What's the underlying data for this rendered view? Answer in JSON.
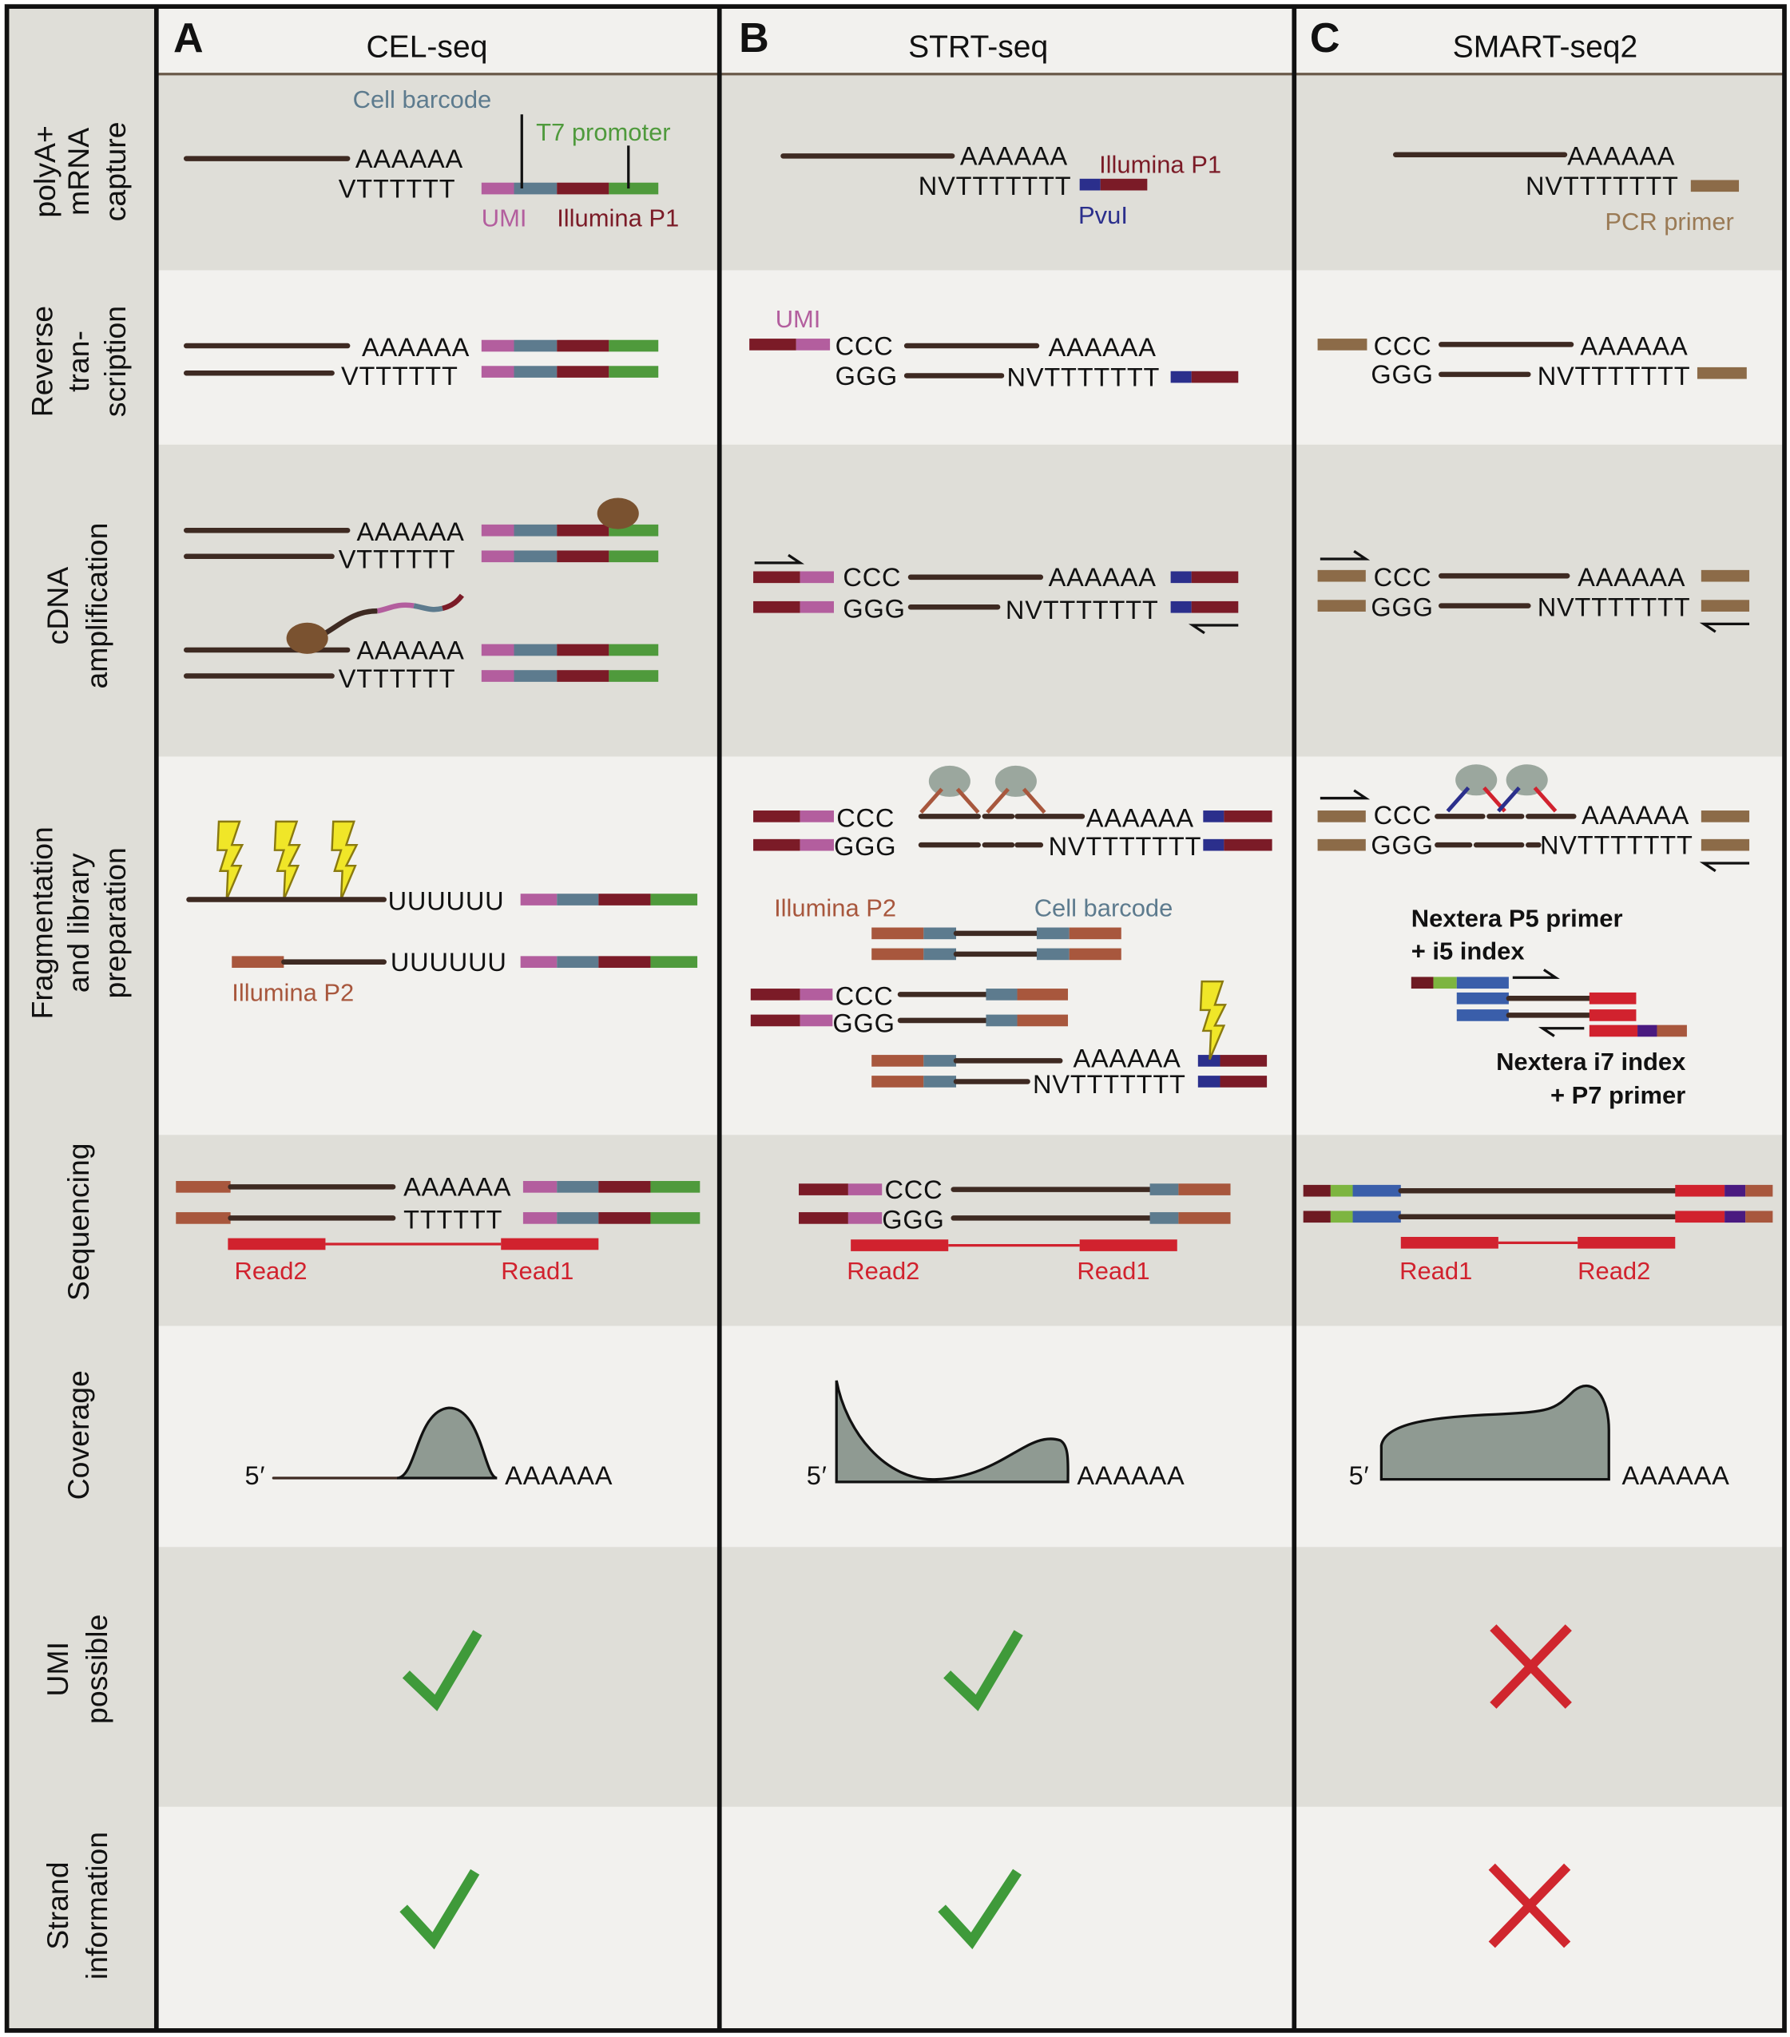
{
  "columns": [
    {
      "letter": "A",
      "name": "CEL-seq"
    },
    {
      "letter": "B",
      "name": "STRT-seq"
    },
    {
      "letter": "C",
      "name": "SMART-seq2"
    }
  ],
  "rows": [
    {
      "lines": [
        "polyA+",
        "mRNA",
        "capture"
      ]
    },
    {
      "lines": [
        "Reverse",
        "tran-",
        "scription"
      ]
    },
    {
      "lines": [
        "cDNA",
        "amplification"
      ]
    },
    {
      "lines": [
        "Fragmentation",
        "and library",
        "preparation"
      ]
    },
    {
      "lines": [
        "Sequencing"
      ]
    },
    {
      "lines": [
        "Coverage"
      ]
    },
    {
      "lines": [
        "UMI",
        "possible"
      ]
    },
    {
      "lines": [
        "Strand",
        "information"
      ]
    }
  ],
  "seq": {
    "polyA": "AAAAAA",
    "oligoT": "VTTTTTT",
    "nv": "NVTTTTTTT",
    "ccc": "CCC",
    "ggg": "GGG",
    "polyU": "UUUUUU",
    "tt": "TTTTTT",
    "five": "5′"
  },
  "labels": {
    "cell_barcode": "Cell barcode",
    "t7": "T7 promoter",
    "umi": "UMI",
    "p1": "Illumina P1",
    "p2": "Illumina P2",
    "pvui": "PvuI",
    "pcr": "PCR primer",
    "nextera_p5_1": "Nextera P5 primer",
    "nextera_p5_2": "+ i5 index",
    "nextera_i7_1": "Nextera i7 index",
    "nextera_i7_2": "+ P7 primer",
    "read1": "Read1",
    "read2": "Read2"
  },
  "results": {
    "umi_possible": {
      "CEL-seq": "yes",
      "STRT-seq": "yes",
      "SMART-seq2": "no"
    },
    "strand_information": {
      "CEL-seq": "yes",
      "STRT-seq": "yes",
      "SMART-seq2": "no"
    }
  },
  "colors": {
    "strand": "#3e2a22",
    "umi": "#b35e9e",
    "barcode": "#5d7b8e",
    "p1": "#7b1b27",
    "t7": "#4f9a3c",
    "pvui": "#2b2f8c",
    "p2": "#a8573d",
    "pcr": "#8c6b48",
    "read": "#d1222e",
    "check": "#3f9a3a",
    "cross": "#d0262e"
  }
}
